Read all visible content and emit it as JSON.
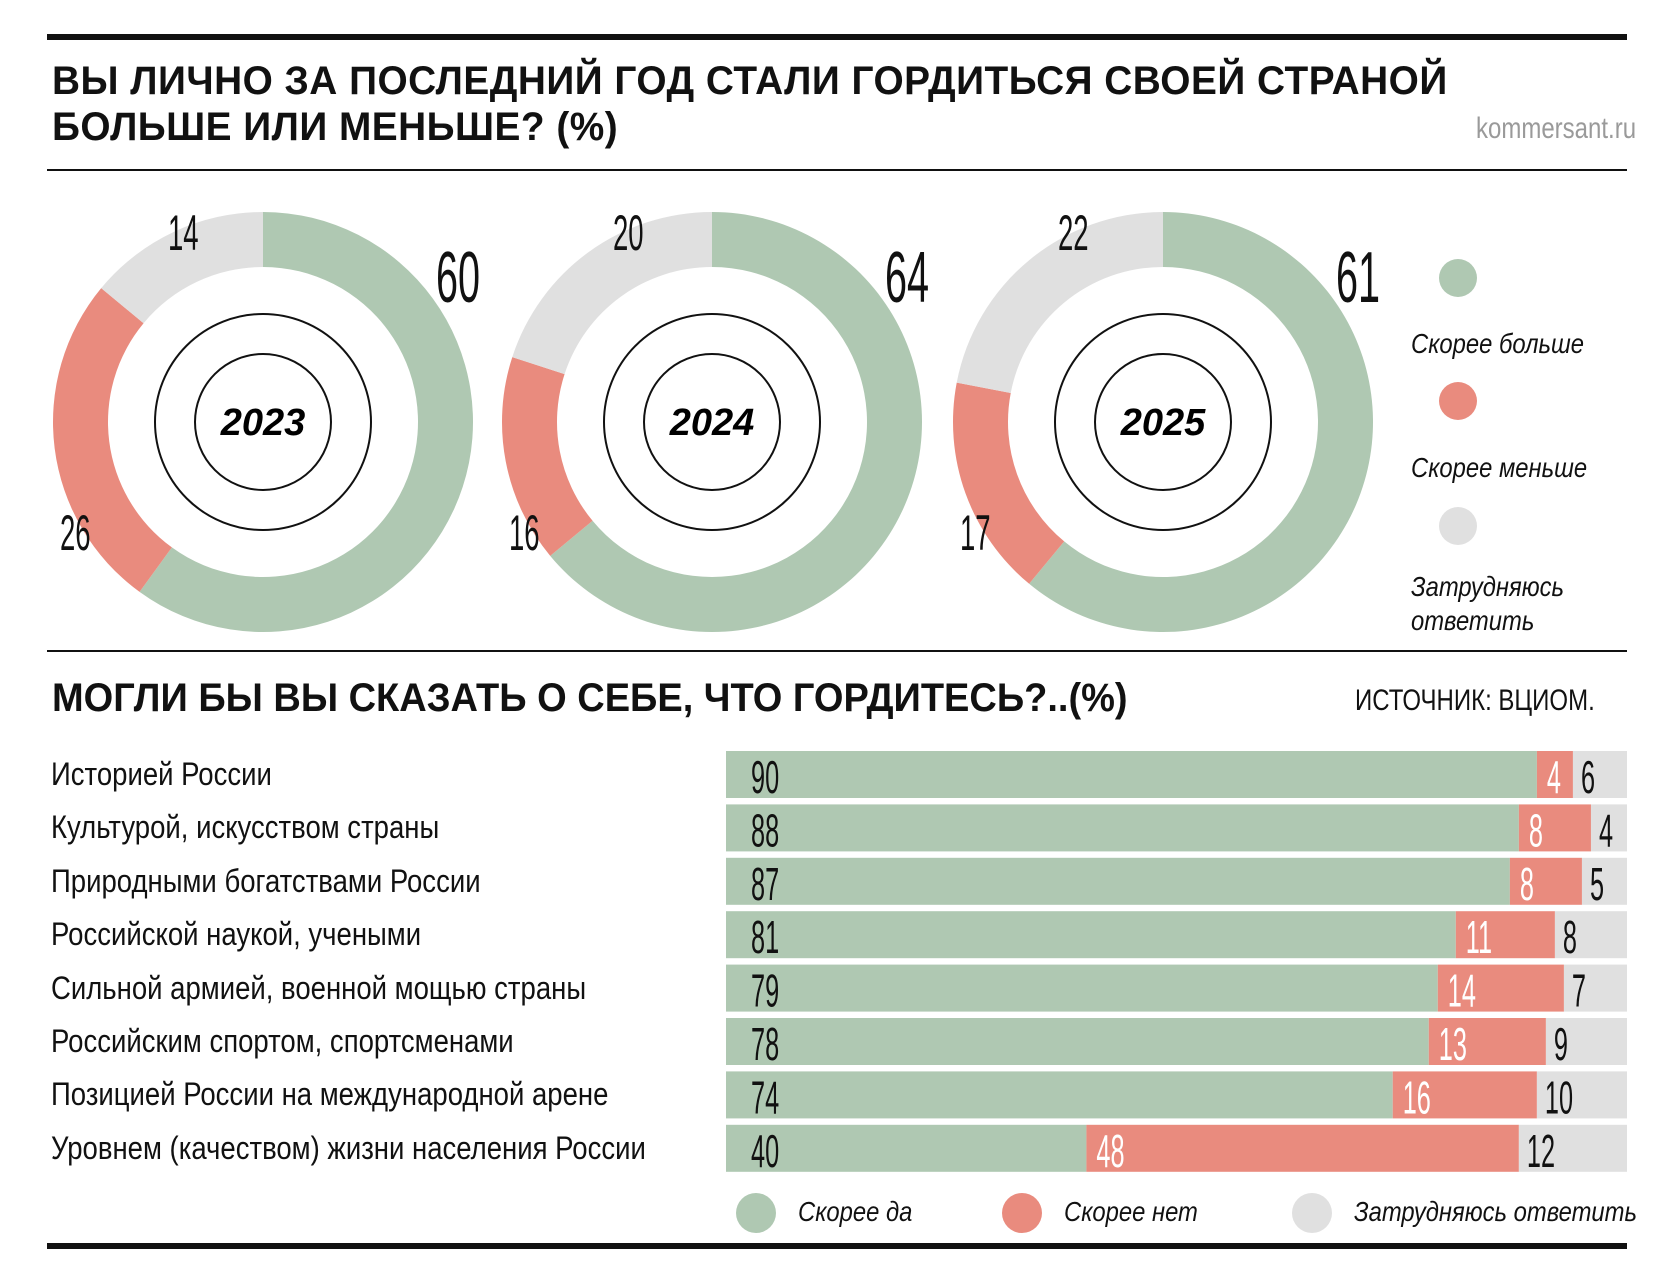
{
  "header": {
    "title_line1": "ВЫ ЛИЧНО ЗА ПОСЛЕДНИЙ ГОД СТАЛИ ГОРДИТЬСЯ СВОЕЙ СТРАНОЙ",
    "title_line2": "БОЛЬШЕ ИЛИ МЕНЬШЕ? (%)",
    "site": "kommersant.ru"
  },
  "section2": {
    "title": "МОГЛИ БЫ ВЫ СКАЗАТЬ О СЕБЕ, ЧТО ГОРДИТЕСЬ?..(%)",
    "source": "ИСТОЧНИК: ВЦИОМ."
  },
  "colors": {
    "green": "#afc8b2",
    "red": "#e98b7e",
    "grey": "#e0e0e0"
  },
  "chart_data": [
    {
      "type": "pie",
      "subtype": "donut",
      "title": "ВЫ ЛИЧНО ЗА ПОСЛЕДНИЙ ГОД СТАЛИ ГОРДИТЬСЯ СВОЕЙ СТРАНОЙ БОЛЬШЕ ИЛИ МЕНЬШЕ? (%)",
      "legend": [
        "Скорее больше",
        "Скорее меньше",
        "Затрудняюсь ответить"
      ],
      "legend_position": "right",
      "charts": [
        {
          "year": "2023",
          "values": [
            60,
            26,
            14
          ]
        },
        {
          "year": "2024",
          "values": [
            64,
            16,
            20
          ]
        },
        {
          "year": "2025",
          "values": [
            61,
            17,
            22
          ]
        }
      ]
    },
    {
      "type": "bar",
      "orientation": "horizontal",
      "stacked": true,
      "title": "МОГЛИ БЫ ВЫ СКАЗАТЬ О СЕБЕ, ЧТО ГОРДИТЕСЬ?..(%)",
      "categories": [
        "Историей России",
        "Культурой, искусством страны",
        "Природными богатствами России",
        "Российской наукой, учеными",
        "Сильной армией, военной мощью страны",
        "Российским спортом, спортсменами",
        "Позицией России на международной арене",
        "Уровнем (качеством) жизни населения России"
      ],
      "series": [
        {
          "name": "Скорее да",
          "values": [
            90,
            88,
            87,
            81,
            79,
            78,
            74,
            40
          ]
        },
        {
          "name": "Скорее нет",
          "values": [
            4,
            8,
            8,
            11,
            14,
            13,
            16,
            48
          ]
        },
        {
          "name": "Затрудняюсь ответить",
          "values": [
            6,
            4,
            5,
            8,
            7,
            9,
            10,
            12
          ]
        }
      ],
      "legend_position": "bottom"
    }
  ]
}
